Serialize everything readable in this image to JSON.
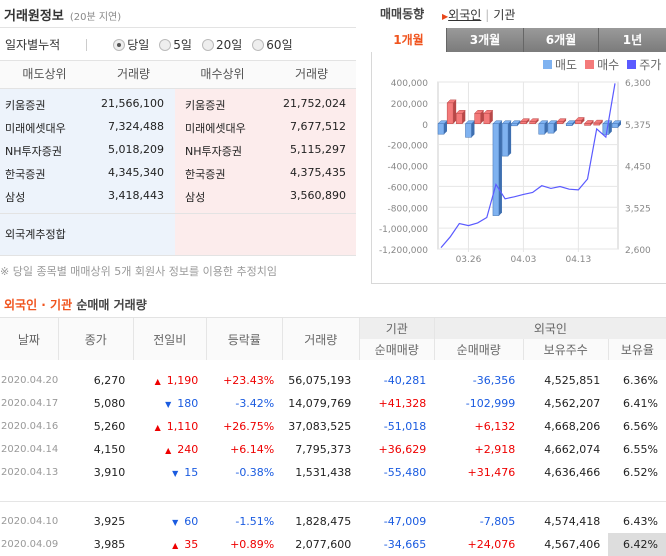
{
  "left": {
    "title": "거래원정보",
    "delay": "(20분 지연)",
    "period_label": "일자별누적",
    "radios": [
      {
        "label": "당일",
        "selected": true
      },
      {
        "label": "5일",
        "selected": false
      },
      {
        "label": "20일",
        "selected": false
      },
      {
        "label": "60일",
        "selected": false
      }
    ],
    "headers": [
      "매도상위",
      "거래량",
      "매수상위",
      "거래량"
    ],
    "rows": [
      {
        "sell": "키움증권",
        "sell_vol": "21,566,100",
        "buy": "키움증권",
        "buy_vol": "21,752,024"
      },
      {
        "sell": "미래에셋대우",
        "sell_vol": "7,324,488",
        "buy": "미래에셋대우",
        "buy_vol": "7,677,512"
      },
      {
        "sell": "NH투자증권",
        "sell_vol": "5,018,209",
        "buy": "NH투자증권",
        "buy_vol": "5,115,297"
      },
      {
        "sell": "한국증권",
        "sell_vol": "4,345,340",
        "buy": "한국증권",
        "buy_vol": "4,375,435"
      },
      {
        "sell": "삼성",
        "sell_vol": "3,418,443",
        "buy": "삼성",
        "buy_vol": "3,560,890"
      }
    ],
    "foreign_sum": "외국계추정합",
    "note": "※ 당일 종목별 매매상위 5개 회원사 정보를 이용한 추정치임"
  },
  "right": {
    "title": "매매동향",
    "link_foreign": "외국인",
    "link_inst": "기관",
    "tabs": [
      {
        "label": "1개월",
        "active": true
      },
      {
        "label": "3개월",
        "active": false
      },
      {
        "label": "6개월",
        "active": false
      },
      {
        "label": "1년",
        "active": false
      }
    ],
    "legend": [
      {
        "label": "매도",
        "color": "#7fb2f0"
      },
      {
        "label": "매수",
        "color": "#f47a7a"
      },
      {
        "label": "주가",
        "color": "#5a5aff"
      }
    ]
  },
  "chart_data": {
    "type": "bar+line",
    "left_ticks": [
      "400,000",
      "200,000",
      "0",
      "-200,000",
      "-400,000",
      "-600,000",
      "-800,000",
      "-1,000,000",
      "-1,200,000"
    ],
    "right_ticks": [
      "6,300",
      "5,375",
      "4,450",
      "3,525",
      "2,600"
    ],
    "ylim": [
      -1200000,
      400000
    ],
    "y2lim": [
      2600,
      6300
    ],
    "x_labels": [
      "03.26",
      "04.03",
      "04.13"
    ],
    "x_label_index": [
      3,
      9,
      15
    ],
    "dates": [
      "03.23",
      "03.24",
      "03.25",
      "03.26",
      "03.27",
      "03.30",
      "03.31",
      "04.01",
      "04.02",
      "04.03",
      "04.06",
      "04.07",
      "04.08",
      "04.09",
      "04.10",
      "04.13",
      "04.14",
      "04.16",
      "04.17",
      "04.20"
    ],
    "net": [
      -100000,
      200000,
      100000,
      -130000,
      100000,
      100000,
      -880000,
      -310000,
      -20000,
      20000,
      20000,
      -100000,
      -90000,
      20000,
      -7805,
      31476,
      2918,
      6132,
      -102999,
      -36356
    ],
    "price": [
      2630,
      2867,
      3163,
      3119,
      3178,
      3297,
      4031,
      3712,
      3757,
      3809,
      3853,
      4002,
      3942,
      3985,
      3925,
      3910,
      4150,
      5260,
      5080,
      6270
    ]
  },
  "bottom": {
    "title_orange": "외국인 · 기관",
    "title_rest": "순매매 거래량",
    "headers": {
      "date": "날짜",
      "close": "종가",
      "change": "전일비",
      "rate": "등락률",
      "volume": "거래량",
      "inst": "기관",
      "foreign": "외국인",
      "inst_net": "순매매량",
      "foreign_net": "순매매량",
      "holdings": "보유주수",
      "ratio": "보유율"
    },
    "rows": [
      {
        "date": "2020.04.20",
        "close": "6,270",
        "dir": "up",
        "change": "1,190",
        "rate": "+23.43%",
        "volume": "56,075,193",
        "inst": "-40,281",
        "foreign": "-36,356",
        "holdings": "4,525,851",
        "ratio": "6.36%"
      },
      {
        "date": "2020.04.17",
        "close": "5,080",
        "dir": "down",
        "change": "180",
        "rate": "-3.42%",
        "volume": "14,079,769",
        "inst": "+41,328",
        "foreign": "-102,999",
        "holdings": "4,562,207",
        "ratio": "6.41%"
      },
      {
        "date": "2020.04.16",
        "close": "5,260",
        "dir": "up",
        "change": "1,110",
        "rate": "+26.75%",
        "volume": "37,083,525",
        "inst": "-51,018",
        "foreign": "+6,132",
        "holdings": "4,668,206",
        "ratio": "6.56%"
      },
      {
        "date": "2020.04.14",
        "close": "4,150",
        "dir": "up",
        "change": "240",
        "rate": "+6.14%",
        "volume": "7,795,373",
        "inst": "+36,629",
        "foreign": "+2,918",
        "holdings": "4,662,074",
        "ratio": "6.55%"
      },
      {
        "date": "2020.04.13",
        "close": "3,910",
        "dir": "down",
        "change": "15",
        "rate": "-0.38%",
        "volume": "1,531,438",
        "inst": "-55,480",
        "foreign": "+31,476",
        "holdings": "4,636,466",
        "ratio": "6.52%"
      },
      {
        "date": "2020.04.10",
        "close": "3,925",
        "dir": "down",
        "change": "60",
        "rate": "-1.51%",
        "volume": "1,828,475",
        "inst": "-47,009",
        "foreign": "-7,805",
        "holdings": "4,574,418",
        "ratio": "6.43%"
      },
      {
        "date": "2020.04.09",
        "close": "3,985",
        "dir": "up",
        "change": "35",
        "rate": "+0.89%",
        "volume": "2,077,600",
        "inst": "-34,665",
        "foreign": "+24,076",
        "holdings": "4,567,406",
        "ratio": "6.42%"
      }
    ]
  }
}
